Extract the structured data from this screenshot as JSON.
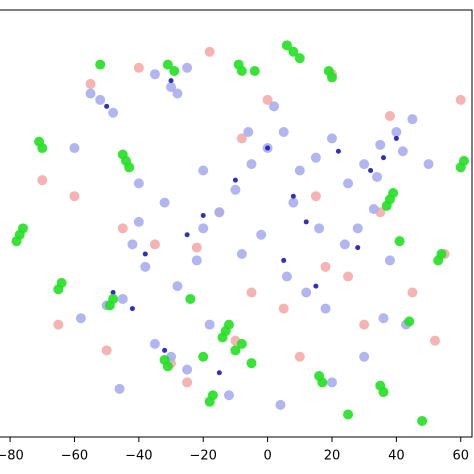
{
  "chart_data": {
    "type": "scatter",
    "xlim": [
      -85,
      63.5
    ],
    "ylim": [
      -65,
      68
    ],
    "xticks": [
      {
        "value": -80,
        "label": "−80"
      },
      {
        "value": -60,
        "label": "−60"
      },
      {
        "value": -40,
        "label": "−40"
      },
      {
        "value": -20,
        "label": "−20"
      },
      0,
      20,
      40,
      60
    ],
    "series": [
      {
        "color": "#f4aba8",
        "x": [
          -70,
          -60,
          -45,
          -35,
          -22,
          -15,
          -5,
          5,
          15,
          25,
          35,
          45,
          55,
          -50,
          -30,
          -10,
          10,
          30,
          -65,
          -55,
          -40,
          -18,
          0,
          20,
          38,
          52,
          -8,
          18,
          -25,
          60
        ],
        "values": [
          15,
          10,
          0,
          -5,
          -6,
          5,
          -20,
          -25,
          10,
          -15,
          5,
          -20,
          -8,
          -38,
          -42,
          -35,
          -40,
          -30,
          -30,
          45,
          50,
          55,
          40,
          48,
          35,
          -35,
          28,
          -12,
          -48,
          40
        ]
      },
      {
        "color": "#a9aef0",
        "x": [
          -52,
          -48,
          -55,
          -35,
          -30,
          -25,
          -28,
          -40,
          -42,
          -38,
          -32,
          -20,
          -22,
          -15,
          -10,
          -5,
          0,
          5,
          10,
          15,
          20,
          25,
          30,
          35,
          40,
          45,
          -8,
          -2,
          6,
          12,
          18,
          28,
          33,
          38,
          43,
          -45,
          -50,
          -58,
          -30,
          -35,
          -25,
          -12,
          -6,
          2,
          8,
          16,
          24,
          34,
          42,
          50,
          -40,
          -20,
          -18,
          30,
          36,
          -28,
          -60,
          20,
          -46,
          4
        ],
        "values": [
          40,
          36,
          42,
          48,
          44,
          50,
          42,
          2,
          -5,
          -12,
          8,
          0,
          -10,
          5,
          12,
          20,
          25,
          30,
          18,
          22,
          28,
          14,
          20,
          26,
          30,
          34,
          -8,
          -2,
          -15,
          -20,
          -25,
          0,
          6,
          -10,
          -30,
          -22,
          -24,
          -28,
          -40,
          -36,
          -44,
          -52,
          30,
          38,
          8,
          0,
          -5,
          16,
          24,
          20,
          14,
          18,
          -30,
          -40,
          -28,
          -18,
          25,
          -48,
          -50,
          -55
        ]
      },
      {
        "color": "#1a1ab8",
        "x": [
          -50,
          -30,
          -25,
          -38,
          -20,
          -10,
          0,
          8,
          15,
          22,
          32,
          40,
          -42,
          -15,
          5,
          28,
          36,
          -48,
          -32,
          12
        ],
        "values": [
          38,
          46,
          -2,
          -8,
          4,
          15,
          25,
          10,
          -18,
          24,
          18,
          28,
          -25,
          -45,
          -10,
          -6,
          22,
          -20,
          -38,
          2
        ]
      },
      {
        "color": "#22e022",
        "x": [
          8,
          10,
          6,
          -9,
          -8,
          -31,
          -29,
          -71,
          -70,
          -44,
          -43,
          -45,
          -77,
          -76,
          -78,
          -65,
          -64,
          -49,
          -48,
          -24,
          -13,
          -12,
          -14,
          -10,
          -32,
          -31,
          19,
          20,
          38,
          37,
          39,
          53,
          54,
          41,
          16,
          17,
          35,
          36,
          61,
          60,
          -4,
          -52,
          44,
          -18,
          -17,
          -5,
          -20,
          -8,
          25,
          48
        ],
        "values": [
          55,
          53,
          57,
          51,
          49,
          51,
          49,
          27,
          25,
          21,
          19,
          23,
          -2,
          0,
          -4,
          -19,
          -17,
          -24,
          -22,
          -22,
          -32,
          -30,
          -34,
          -38,
          -41,
          -43,
          49,
          47,
          9,
          7,
          11,
          -10,
          -8,
          -4,
          -46,
          -48,
          -49,
          -51,
          21,
          19,
          49,
          51,
          -29,
          -54,
          -52,
          -42,
          -40,
          -36,
          -58,
          -60
        ]
      }
    ]
  }
}
